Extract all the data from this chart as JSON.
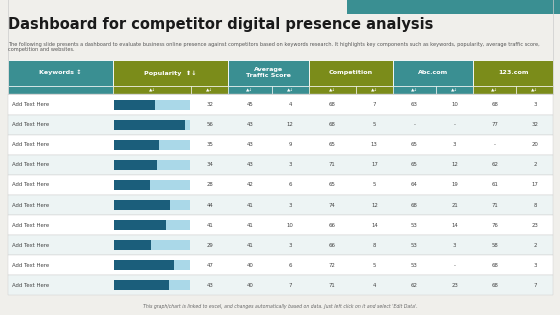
{
  "title": "Dashboard for competitor digital presence analysis",
  "subtitle": "The following slide presents a dashboard to evaluate business online presence against competitors based on keywords research. It highlights key components such as keywords, popularity, average traffic score, competition and websites.",
  "footer": "This graph/chart is linked to excel, and changes automatically based on data. Just left click on it and select 'Edit Data'.",
  "bg_color": "#f0efeb",
  "header_teal": "#3a8f92",
  "header_olive": "#7b8c1a",
  "row_bg_even": "#ffffff",
  "row_bg_odd": "#edf4f4",
  "border_color": "#cccccc",
  "bar_dark": "#1b5e7b",
  "bar_light": "#aad8e8",
  "bar_max": 60,
  "top_bar_color": "#3a8f92",
  "rows": [
    [
      "Add Text Here",
      32,
      45,
      4,
      68,
      7,
      63,
      10,
      68,
      3
    ],
    [
      "Add Text Here",
      56,
      43,
      12,
      68,
      5,
      "-",
      "-",
      77,
      32
    ],
    [
      "Add Text Here",
      35,
      43,
      9,
      65,
      13,
      65,
      3,
      "-",
      20
    ],
    [
      "Add Text Here",
      34,
      43,
      3,
      71,
      17,
      65,
      12,
      62,
      2
    ],
    [
      "Add Text Here",
      28,
      42,
      6,
      65,
      5,
      64,
      19,
      61,
      17
    ],
    [
      "Add Text Here",
      44,
      41,
      3,
      74,
      12,
      68,
      21,
      71,
      8
    ],
    [
      "Add Text Here",
      41,
      41,
      10,
      66,
      14,
      53,
      14,
      76,
      23
    ],
    [
      "Add Text Here",
      29,
      41,
      3,
      66,
      8,
      53,
      3,
      58,
      2
    ],
    [
      "Add Text Here",
      47,
      40,
      6,
      72,
      5,
      53,
      "-",
      68,
      3
    ],
    [
      "Add Text Here",
      43,
      40,
      7,
      71,
      4,
      62,
      23,
      68,
      7
    ]
  ]
}
